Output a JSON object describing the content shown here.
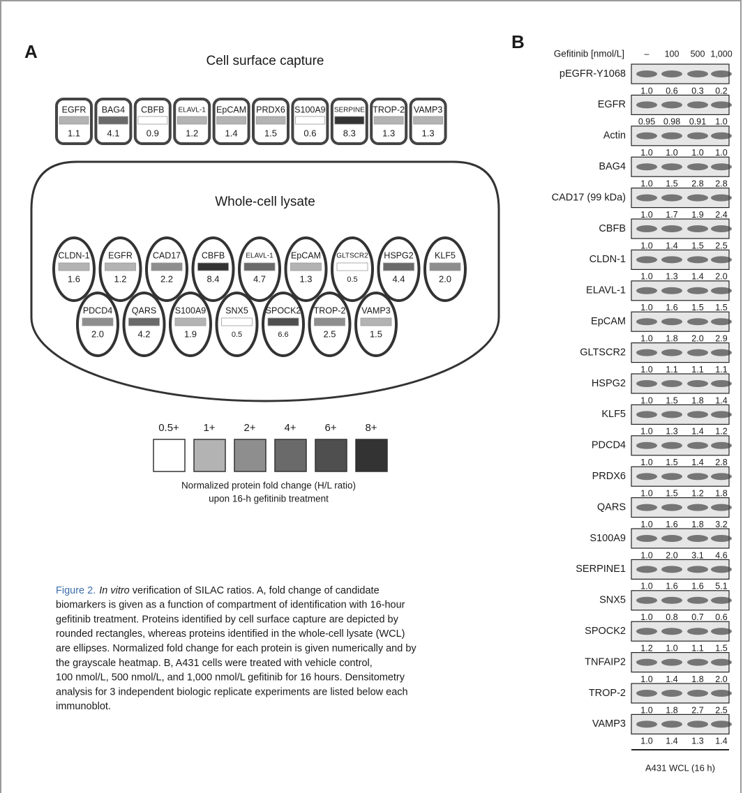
{
  "panel_a": {
    "label": "A",
    "surface": {
      "title": "Cell surface capture",
      "proteins": [
        {
          "name": "EGFR",
          "value": "1.1",
          "color": "#b3b3b3"
        },
        {
          "name": "BAG4",
          "value": "4.1",
          "color": "#6a6a6a"
        },
        {
          "name": "CBFB",
          "value": "0.9",
          "color": "#ffffff"
        },
        {
          "name": "ELAVL-1",
          "value": "1.2",
          "color": "#b3b3b3"
        },
        {
          "name": "EpCAM",
          "value": "1.4",
          "color": "#b3b3b3"
        },
        {
          "name": "PRDX6",
          "value": "1.5",
          "color": "#b3b3b3"
        },
        {
          "name": "S100A9",
          "value": "0.6",
          "color": "#ffffff"
        },
        {
          "name": "SERPINE",
          "value": "8.3",
          "color": "#333333"
        },
        {
          "name": "TROP-2",
          "value": "1.3",
          "color": "#b3b3b3"
        },
        {
          "name": "VAMP3",
          "value": "1.3",
          "color": "#b3b3b3"
        }
      ]
    },
    "lysate": {
      "title": "Whole-cell lysate",
      "proteins": [
        {
          "name": "CLDN-1",
          "value": "1.6",
          "color": "#b3b3b3"
        },
        {
          "name": "EGFR",
          "value": "1.2",
          "color": "#b3b3b3"
        },
        {
          "name": "CAD17",
          "value": "2.2",
          "color": "#8e8e8e"
        },
        {
          "name": "CBFB",
          "value": "8.4",
          "color": "#333333"
        },
        {
          "name": "ELAVL-1",
          "value": "4.7",
          "color": "#6a6a6a"
        },
        {
          "name": "EpCAM",
          "value": "1.3",
          "color": "#b3b3b3"
        },
        {
          "name": "GLTSCR2",
          "value": "0.5",
          "color": "#ffffff"
        },
        {
          "name": "HSPG2",
          "value": "4.4",
          "color": "#6a6a6a"
        },
        {
          "name": "KLF5",
          "value": "2.0",
          "color": "#8e8e8e"
        },
        {
          "name": "PDCD4",
          "value": "2.0",
          "color": "#8e8e8e"
        },
        {
          "name": "QARS",
          "value": "4.2",
          "color": "#6a6a6a"
        },
        {
          "name": "S100A9",
          "value": "1.9",
          "color": "#b3b3b3"
        },
        {
          "name": "SNX5",
          "value": "0.5",
          "color": "#ffffff"
        },
        {
          "name": "SPOCK2",
          "value": "6.6",
          "color": "#4f4f4f"
        },
        {
          "name": "TROP-2",
          "value": "2.5",
          "color": "#8e8e8e"
        },
        {
          "name": "VAMP3",
          "value": "1.5",
          "color": "#b3b3b3"
        }
      ]
    },
    "legend": {
      "items": [
        {
          "label": "0.5+",
          "color": "#ffffff"
        },
        {
          "label": "1+",
          "color": "#b3b3b3"
        },
        {
          "label": "2+",
          "color": "#8e8e8e"
        },
        {
          "label": "4+",
          "color": "#6a6a6a"
        },
        {
          "label": "6+",
          "color": "#4f4f4f"
        },
        {
          "label": "8+",
          "color": "#333333"
        }
      ],
      "caption": [
        "Normalized protein fold change (H/L ratio)",
        "upon 16-h gefitinib treatment"
      ]
    }
  },
  "panel_b": {
    "label": "B",
    "header": "Gefitinib [nmol/L]",
    "doses": [
      "–",
      "100",
      "500",
      "1,000"
    ],
    "blots": [
      {
        "name": "pEGFR-Y1068",
        "values": [
          "1.0",
          "0.6",
          "0.3",
          "0.2"
        ]
      },
      {
        "name": "EGFR",
        "values": [
          "0.95",
          "0.98",
          "0.91",
          "1.0"
        ]
      },
      {
        "name": "Actin",
        "values": [
          "1.0",
          "1.0",
          "1.0",
          "1.0"
        ]
      },
      {
        "name": "BAG4",
        "values": [
          "1.0",
          "1.5",
          "2.8",
          "2.8"
        ]
      },
      {
        "name": "CAD17 (99 kDa)",
        "values": [
          "1.0",
          "1.7",
          "1.9",
          "2.4"
        ]
      },
      {
        "name": "CBFB",
        "values": [
          "1.0",
          "1.4",
          "1.5",
          "2.5"
        ]
      },
      {
        "name": "CLDN-1",
        "values": [
          "1.0",
          "1.3",
          "1.4",
          "2.0"
        ]
      },
      {
        "name": "ELAVL-1",
        "values": [
          "1.0",
          "1.6",
          "1.5",
          "1.5"
        ]
      },
      {
        "name": "EpCAM",
        "values": [
          "1.0",
          "1.8",
          "2.0",
          "2.9"
        ]
      },
      {
        "name": "GLTSCR2",
        "values": [
          "1.0",
          "1.1",
          "1.1",
          "1.1"
        ]
      },
      {
        "name": "HSPG2",
        "values": [
          "1.0",
          "1.5",
          "1.8",
          "1.4"
        ]
      },
      {
        "name": "KLF5",
        "values": [
          "1.0",
          "1.3",
          "1.4",
          "1.2"
        ]
      },
      {
        "name": "PDCD4",
        "values": [
          "1.0",
          "1.5",
          "1.4",
          "2.8"
        ]
      },
      {
        "name": "PRDX6",
        "values": [
          "1.0",
          "1.5",
          "1.2",
          "1.8"
        ]
      },
      {
        "name": "QARS",
        "values": [
          "1.0",
          "1.6",
          "1.8",
          "3.2"
        ]
      },
      {
        "name": "S100A9",
        "values": [
          "1.0",
          "2.0",
          "3.1",
          "4.6"
        ]
      },
      {
        "name": "SERPINE1",
        "values": [
          "1.0",
          "1.6",
          "1.6",
          "5.1"
        ]
      },
      {
        "name": "SNX5",
        "values": [
          "1.0",
          "0.8",
          "0.7",
          "0.6"
        ]
      },
      {
        "name": "SPOCK2",
        "values": [
          "1.2",
          "1.0",
          "1.1",
          "1.5"
        ]
      },
      {
        "name": "TNFAIP2",
        "values": [
          "1.0",
          "1.4",
          "1.8",
          "2.0"
        ]
      },
      {
        "name": "TROP-2",
        "values": [
          "1.0",
          "1.8",
          "2.7",
          "2.5"
        ]
      },
      {
        "name": "VAMP3",
        "values": [
          "1.0",
          "1.4",
          "1.3",
          "1.4"
        ]
      }
    ],
    "footer": "A431  WCL  (16 h)"
  },
  "caption": {
    "label": "Figure 2.",
    "italic": "In vitro",
    "lines": [
      " verification of SILAC ratios. A, fold change of candidate",
      "biomarkers is given as a function of compartment of identification with 16-hour",
      "gefitinib treatment. Proteins identified by cell surface capture are depicted by",
      "rounded rectangles, whereas proteins identified in the whole-cell lysate (WCL)",
      "are ellipses. Normalized fold change for each protein is given numerically and by",
      "the grayscale heatmap. B, A431 cells were treated with vehicle control,",
      "100 nmol/L, 500 nmol/L, and 1,000 nmol/L gefitinib for 16 hours. Densitometry",
      "analysis for 3 independent biologic replicate experiments are listed below each",
      "immunoblot."
    ]
  }
}
